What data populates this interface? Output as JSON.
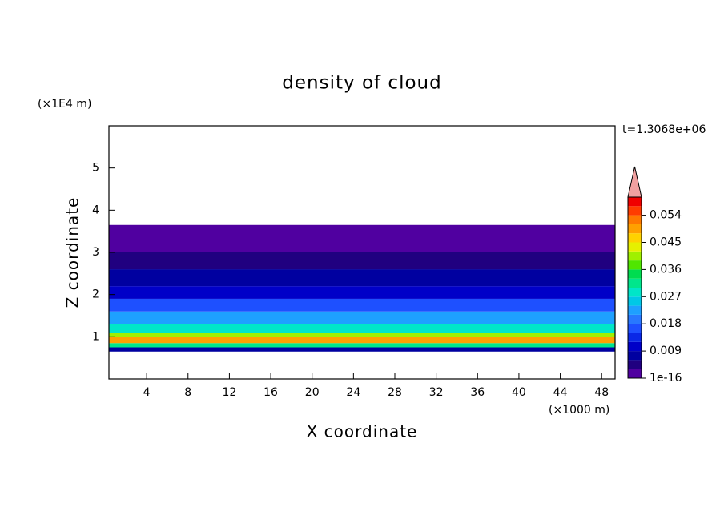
{
  "chart_data": {
    "type": "contour",
    "title": "density of cloud",
    "xlabel": "X coordinate",
    "ylabel": "Z coordinate",
    "x_unit": "(×1000 m)",
    "y_unit": "(×1E4 m)",
    "annotation": "t=1.3068e+06",
    "xlim": [
      0.35,
      49.3
    ],
    "xticks": [
      4,
      8,
      12,
      16,
      20,
      24,
      28,
      32,
      36,
      40,
      44,
      48
    ],
    "ylim": [
      0,
      6
    ],
    "yticks": [
      1,
      2,
      3,
      4,
      5
    ],
    "z": [
      0.65,
      0.75,
      0.85,
      1.0,
      1.1,
      1.3,
      1.6,
      1.9,
      2.2,
      2.6,
      3.0,
      3.65
    ],
    "values": [
      0.006,
      0.03,
      0.05,
      0.04,
      0.028,
      0.022,
      0.016,
      0.011,
      0.007,
      0.004,
      0.001
    ],
    "levels": [
      1e-16,
      0.003,
      0.006,
      0.009,
      0.012,
      0.015,
      0.018,
      0.021,
      0.024,
      0.027,
      0.03,
      0.033,
      0.036,
      0.039,
      0.042,
      0.045,
      0.048,
      0.051,
      0.054,
      0.057,
      0.06
    ],
    "colors": [
      "#5000a0",
      "#200080",
      "#0000a0",
      "#0000c8",
      "#0a28e6",
      "#1e50ff",
      "#2878ff",
      "#1ea0ff",
      "#00c8e6",
      "#00e6c8",
      "#00e68c",
      "#00dc50",
      "#50e600",
      "#a0f000",
      "#e6f000",
      "#ffd200",
      "#ffa000",
      "#ff7800",
      "#ff3c00",
      "#f00000"
    ],
    "extend_color": "#f0a0a0",
    "colorbar_ticks": [
      1e-16,
      0.009,
      0.018,
      0.027,
      0.036,
      0.045,
      0.054
    ]
  }
}
